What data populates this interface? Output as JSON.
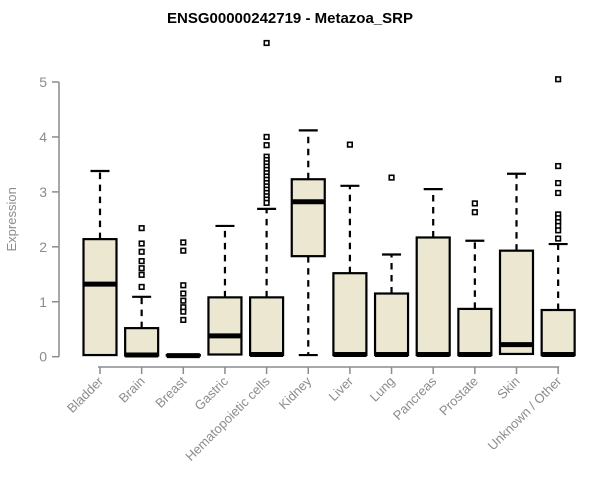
{
  "page": {
    "background": "#ffffff"
  },
  "chart_data": {
    "type": "boxplot",
    "title": "ENSG00000242719 - Metazoa_SRP",
    "ylabel": "Expression",
    "xlabel": "",
    "ylim": [
      0,
      5
    ],
    "yticks": [
      0,
      1,
      2,
      3,
      4,
      5
    ],
    "grid": false,
    "legend": "none",
    "colors": {
      "box_fill": "#ECE7D0",
      "box_border": "#000000",
      "median": "#000000",
      "whisker": "#000000",
      "outlier_fill": "#ffffff",
      "outlier_border": "#000000",
      "axis": "#8c8c8c",
      "tick_label": "#8c8c8c",
      "title": "#000000"
    },
    "categories": [
      "Bladder",
      "Brain",
      "Breast",
      "Gastric",
      "Hematopoietic cells",
      "Kidney",
      "Liver",
      "Lung",
      "Pancreas",
      "Prostate",
      "Skin",
      "Unknown / Other"
    ],
    "series": [
      {
        "name": "Bladder",
        "whisker_low": 0.03,
        "q1": 0.03,
        "median": 1.32,
        "q3": 2.14,
        "whisker_high": 3.38,
        "outliers": []
      },
      {
        "name": "Brain",
        "whisker_low": 0.02,
        "q1": 0.02,
        "median": 0.03,
        "q3": 0.52,
        "whisker_high": 1.09,
        "outliers": [
          2.34,
          2.06,
          1.91,
          1.74,
          1.61,
          1.49,
          1.27
        ]
      },
      {
        "name": "Breast",
        "whisker_low": 0.02,
        "q1": 0.02,
        "median": 0.02,
        "q3": 0.03,
        "whisker_high": 0.03,
        "outliers": [
          2.08,
          1.93,
          1.3,
          1.15,
          1.02,
          0.9,
          0.82,
          0.67
        ]
      },
      {
        "name": "Gastric",
        "whisker_low": 0.03,
        "q1": 0.04,
        "median": 0.38,
        "q3": 1.08,
        "whisker_high": 2.38,
        "outliers": []
      },
      {
        "name": "Hematopoietic cells",
        "whisker_low": 0.02,
        "q1": 0.03,
        "median": 0.04,
        "q3": 1.08,
        "whisker_high": 2.69,
        "outliers": [
          5.71,
          4.0,
          3.85,
          3.64,
          3.58,
          3.52,
          3.46,
          3.4,
          3.34,
          3.28,
          3.22,
          3.16,
          3.1,
          3.04,
          2.98,
          2.92,
          2.86,
          2.8
        ]
      },
      {
        "name": "Kidney",
        "whisker_low": 0.03,
        "q1": 1.83,
        "median": 2.82,
        "q3": 3.23,
        "whisker_high": 4.12,
        "outliers": []
      },
      {
        "name": "Liver",
        "whisker_low": 0.02,
        "q1": 0.03,
        "median": 0.04,
        "q3": 1.52,
        "whisker_high": 3.11,
        "outliers": [
          3.86
        ]
      },
      {
        "name": "Lung",
        "whisker_low": 0.02,
        "q1": 0.03,
        "median": 0.04,
        "q3": 1.15,
        "whisker_high": 1.86,
        "outliers": [
          3.26
        ]
      },
      {
        "name": "Pancreas",
        "whisker_low": 0.02,
        "q1": 0.03,
        "median": 0.04,
        "q3": 2.17,
        "whisker_high": 3.05,
        "outliers": []
      },
      {
        "name": "Prostate",
        "whisker_low": 0.02,
        "q1": 0.03,
        "median": 0.04,
        "q3": 0.87,
        "whisker_high": 2.11,
        "outliers": [
          2.79,
          2.63
        ]
      },
      {
        "name": "Skin",
        "whisker_low": 0.03,
        "q1": 0.05,
        "median": 0.22,
        "q3": 1.93,
        "whisker_high": 3.33,
        "outliers": []
      },
      {
        "name": "Unknown / Other",
        "whisker_low": 0.02,
        "q1": 0.03,
        "median": 0.04,
        "q3": 0.85,
        "whisker_high": 2.05,
        "outliers": [
          5.05,
          3.47,
          3.16,
          2.98,
          2.59,
          2.52,
          2.45,
          2.38,
          2.3,
          2.15
        ]
      }
    ]
  }
}
